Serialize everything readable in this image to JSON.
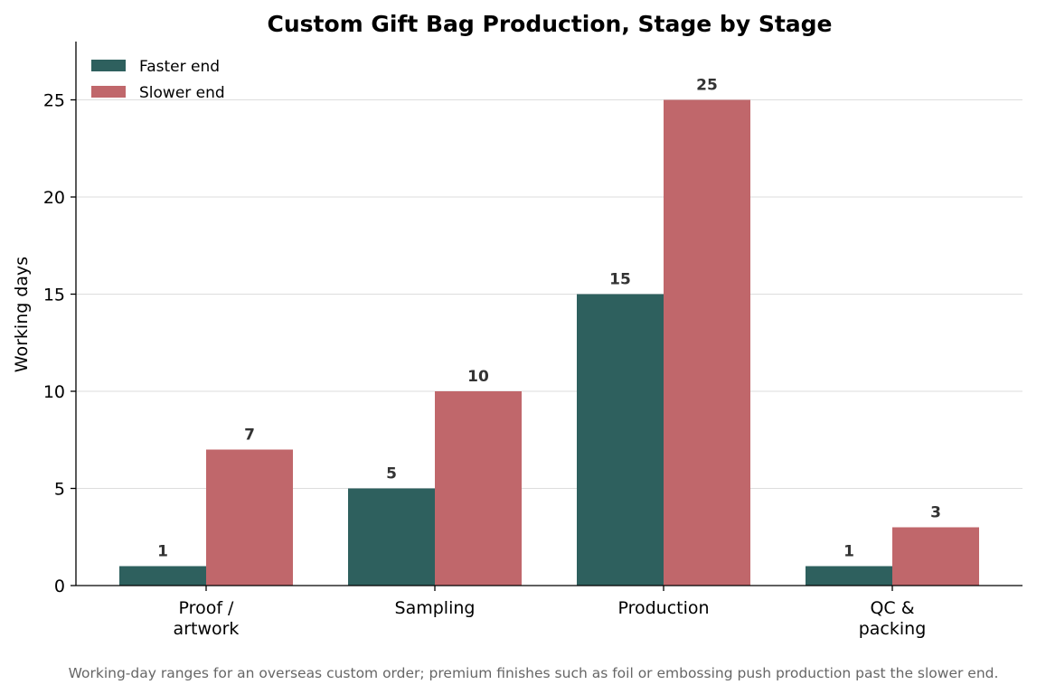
{
  "chart_data": {
    "type": "bar",
    "title": "Custom Gift Bag Production, Stage by Stage",
    "xlabel": "",
    "ylabel": "Working days",
    "categories": [
      [
        "Proof /",
        "artwork"
      ],
      [
        "Sampling"
      ],
      [
        "Production"
      ],
      [
        "QC &",
        "packing"
      ]
    ],
    "series": [
      {
        "name": "Faster end",
        "color": "#2e605e",
        "values": [
          1,
          5,
          15,
          1
        ]
      },
      {
        "name": "Slower end",
        "color": "#c0676b",
        "values": [
          7,
          10,
          25,
          3
        ]
      }
    ],
    "ylim": [
      0,
      28
    ],
    "yticks": [
      0,
      5,
      10,
      15,
      20,
      25
    ],
    "grid": "y",
    "legend_position": "top-left",
    "caption": "Working-day ranges for an overseas custom order; premium finishes such as foil or embossing push production past the slower end."
  }
}
